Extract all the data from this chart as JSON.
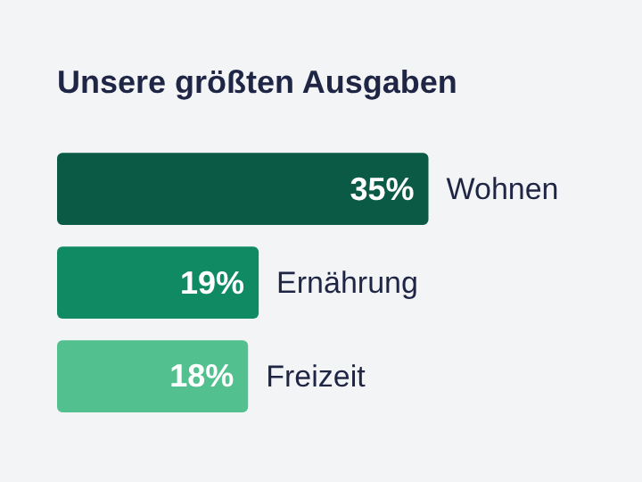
{
  "chart_data": {
    "type": "bar",
    "orientation": "horizontal",
    "title": "Unsere größten Ausgaben",
    "categories": [
      "Wohnen",
      "Ernährung",
      "Freizeit"
    ],
    "values": [
      35,
      19,
      18
    ],
    "colors": [
      "#0b5a45",
      "#108a63",
      "#52c08f"
    ],
    "value_labels": [
      "35%",
      "19%",
      "18%"
    ]
  }
}
